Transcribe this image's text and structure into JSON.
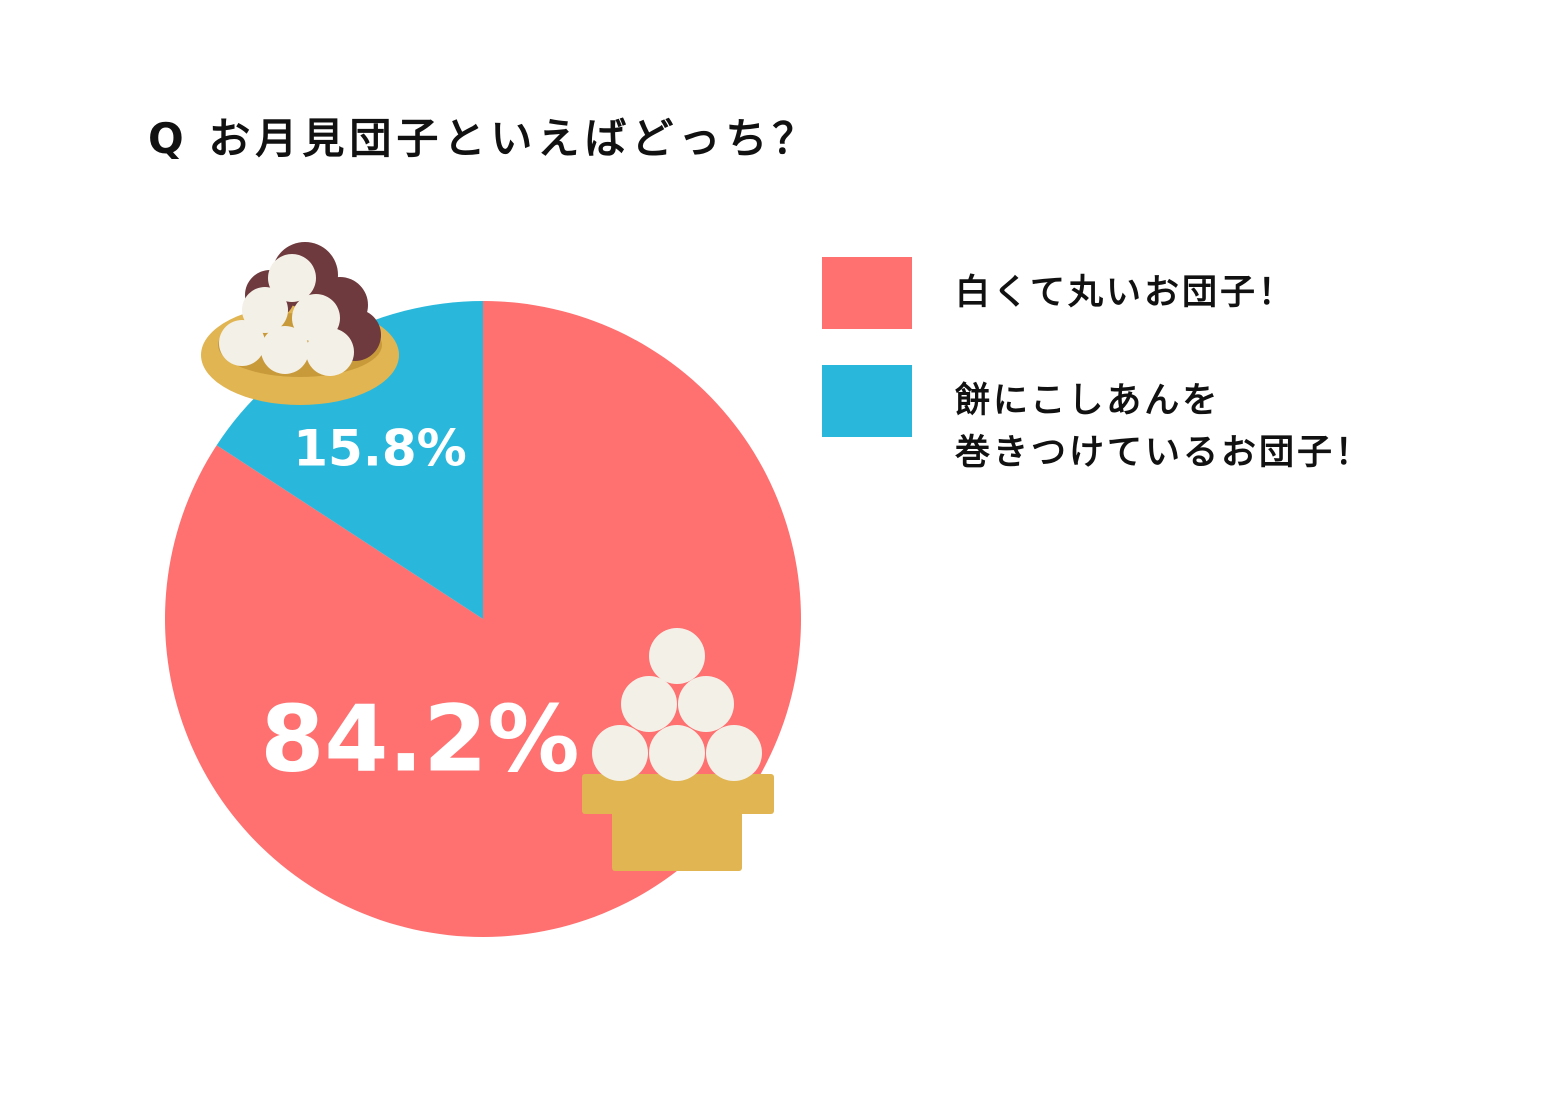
{
  "chart_data": {
    "type": "pie",
    "title": "Q お月見団子といえばどっち？",
    "categories": [
      "白くて丸いお団子！",
      "餅にこしあんを\n巻きつけているお団子！"
    ],
    "values": [
      84.2,
      15.8
    ],
    "value_labels": [
      "84.2%",
      "15.8%"
    ],
    "colors": [
      "#ff7070",
      "#29b8dc"
    ]
  }
}
